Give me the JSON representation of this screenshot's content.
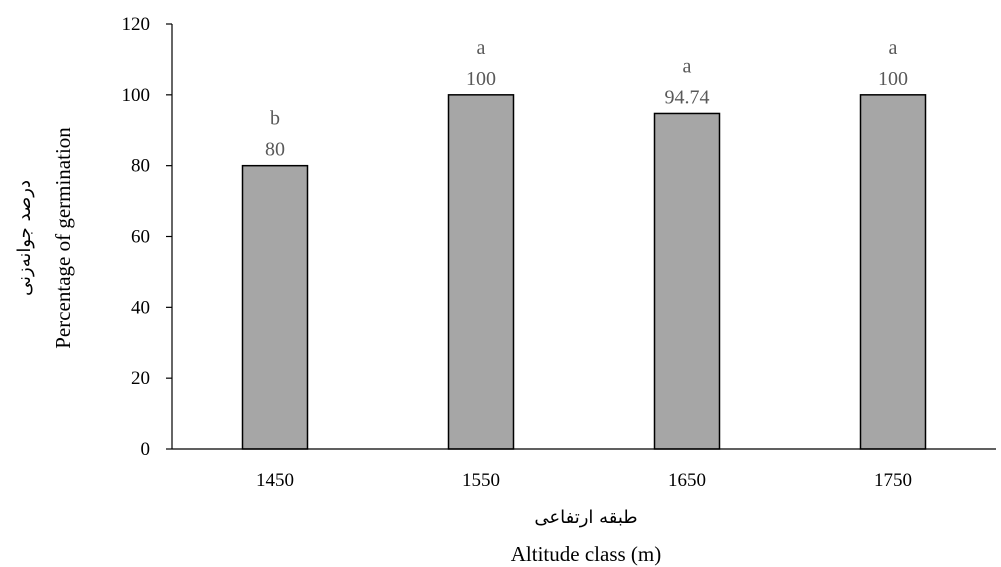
{
  "chart_data": {
    "type": "bar",
    "categories": [
      "1450",
      "1550",
      "1650",
      "1750"
    ],
    "values": [
      80,
      100,
      94.74,
      100
    ],
    "data_labels": [
      "80",
      "100",
      "94.74",
      "100"
    ],
    "significance_letters": [
      "b",
      "a",
      "a",
      "a"
    ],
    "ylim": [
      0,
      120
    ],
    "yticks": [
      "0",
      "20",
      "40",
      "60",
      "80",
      "100",
      "120"
    ],
    "xlabel_fa": "طبقه ارتفاعی",
    "xlabel": "Altitude class (m)",
    "ylabel_fa": "درصد جوانه‌زنی",
    "ylabel": "Percentage of germination",
    "grid": false,
    "legend": "none",
    "bar_color": "#a6a6a6",
    "bar_edge_color": "#000000",
    "label_color": "#595959"
  }
}
